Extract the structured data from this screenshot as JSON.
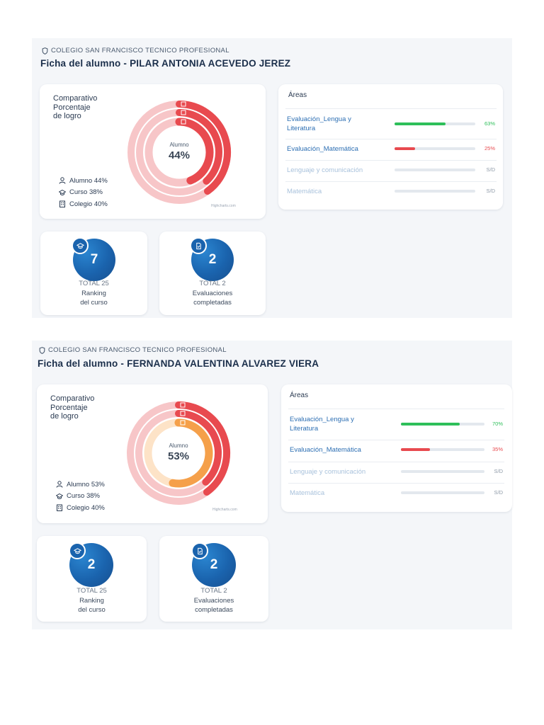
{
  "students": [
    {
      "school": "COLEGIO SAN FRANCISCO TECNICO PROFESIONAL",
      "title": "Ficha del alumno - PILAR ANTONIA ACEVEDO JEREZ",
      "chart": {
        "title": "Comparativo\nPorcentaje\nde logro",
        "center_label": "Alumno",
        "center_value": "44%",
        "credit": "Highcharts.com",
        "legend": [
          "Alumno 44%",
          "Curso 38%",
          "Colegio 40%"
        ]
      },
      "areas_header": "Áreas",
      "areas": [
        {
          "name": "Evaluación_Lengua y\nLiteratura",
          "value": "63%"
        },
        {
          "name": "Evaluación_Matemática",
          "value": "25%"
        },
        {
          "name": "Lenguaje y comunicación",
          "value": "S/D"
        },
        {
          "name": "Matemática",
          "value": "S/D"
        }
      ],
      "stats": [
        {
          "value": "7",
          "total": "TOTAL 25",
          "label": "Ranking\ndel curso",
          "icon": "graduation-cap-icon"
        },
        {
          "value": "2",
          "total": "TOTAL 2",
          "label": "Evaluaciones\ncompletadas",
          "icon": "document-check-icon"
        }
      ]
    },
    {
      "school": "COLEGIO SAN FRANCISCO TECNICO PROFESIONAL",
      "title": "Ficha del alumno - FERNANDA VALENTINA ALVAREZ VIERA",
      "chart": {
        "title": "Comparativo\nPorcentaje\nde logro",
        "center_label": "Alumno",
        "center_value": "53%",
        "credit": "Highcharts.com",
        "legend": [
          "Alumno 53%",
          "Curso 38%",
          "Colegio 40%"
        ]
      },
      "areas_header": "Áreas",
      "areas": [
        {
          "name": "Evaluación_Lengua y\nLiteratura",
          "value": "70%"
        },
        {
          "name": "Evaluación_Matemática",
          "value": "35%"
        },
        {
          "name": "Lenguaje y comunicación",
          "value": "S/D"
        },
        {
          "name": "Matemática",
          "value": "S/D"
        }
      ],
      "stats": [
        {
          "value": "2",
          "total": "TOTAL 25",
          "label": "Ranking\ndel curso",
          "icon": "graduation-cap-icon"
        },
        {
          "value": "2",
          "total": "TOTAL 2",
          "label": "Evaluaciones\ncompletadas",
          "icon": "document-check-icon"
        }
      ]
    }
  ],
  "chart_data": [
    {
      "type": "radial-bar",
      "series": [
        {
          "name": "Alumno",
          "value": 44,
          "color": "#e84a4f"
        },
        {
          "name": "Curso",
          "value": 38,
          "color": "#e84a4f"
        },
        {
          "name": "Colegio",
          "value": 40,
          "color": "#e84a4f"
        }
      ],
      "ylim": [
        0,
        100
      ]
    },
    {
      "type": "radial-bar",
      "series": [
        {
          "name": "Alumno",
          "value": 53,
          "color": "#f5a04a"
        },
        {
          "name": "Curso",
          "value": 38,
          "color": "#e84a4f"
        },
        {
          "name": "Colegio",
          "value": 40,
          "color": "#e84a4f"
        }
      ],
      "ylim": [
        0,
        100
      ]
    }
  ],
  "area_bars": [
    [
      {
        "fraction": 0.63,
        "color": "#2ebf5a"
      },
      {
        "fraction": 0.25,
        "color": "#e84a4f"
      },
      {
        "fraction": 0,
        "color": "#b7cde4"
      },
      {
        "fraction": 0,
        "color": "#b7cde4"
      }
    ],
    [
      {
        "fraction": 0.7,
        "color": "#2ebf5a"
      },
      {
        "fraction": 0.35,
        "color": "#e84a4f"
      },
      {
        "fraction": 0,
        "color": "#b7cde4"
      },
      {
        "fraction": 0,
        "color": "#b7cde4"
      }
    ]
  ],
  "colors": {
    "accent_blue": "#1a63ad",
    "title_blue": "#1b2f4b",
    "area_link": "#2d6fb3",
    "area_muted": "#a9c2dc",
    "success": "#2ebf5a",
    "danger": "#e84a4f",
    "ring_pale": "#f7c6c8",
    "orange": "#f5a04a"
  }
}
